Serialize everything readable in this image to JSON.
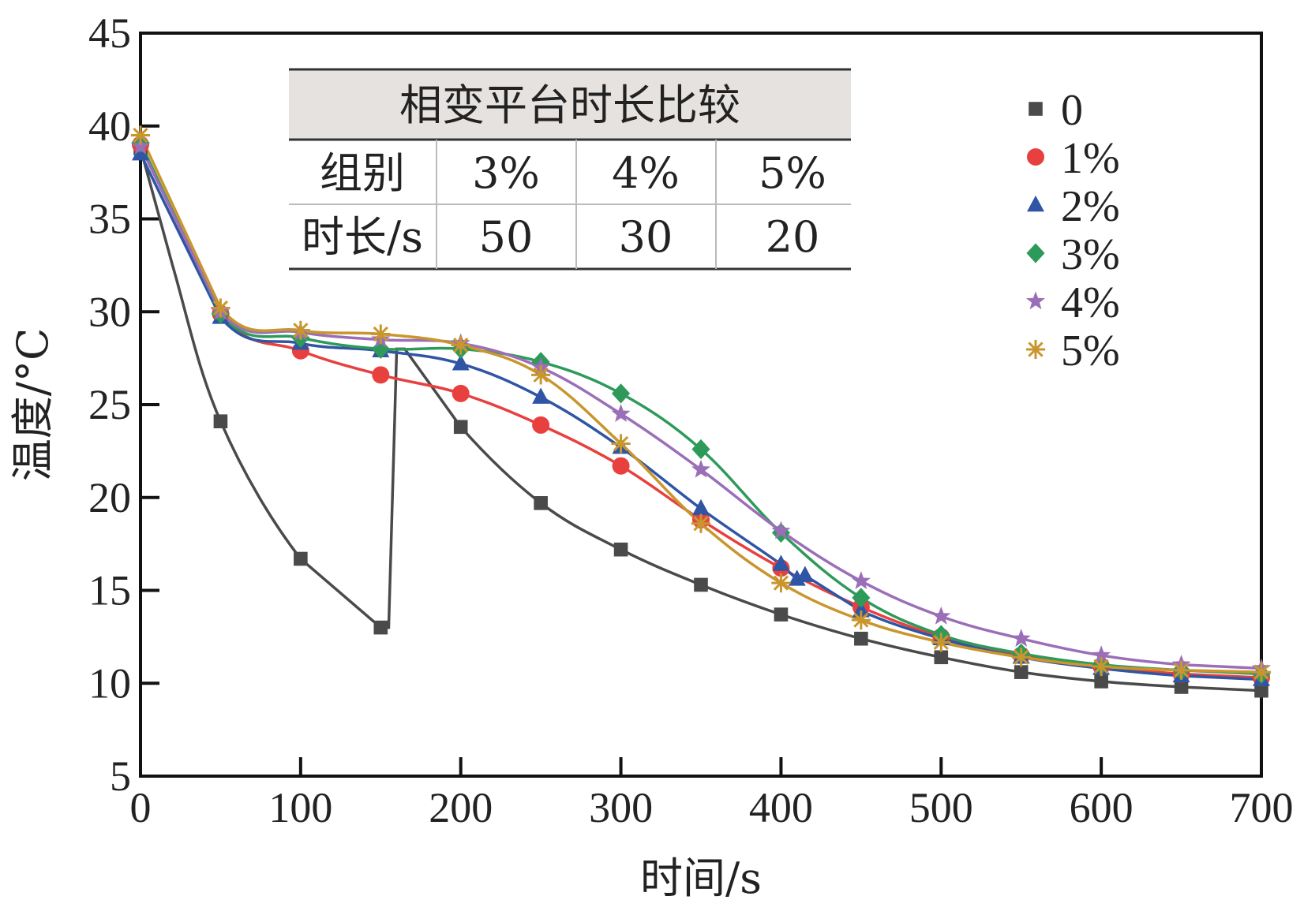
{
  "chart_data": {
    "type": "line",
    "xlabel": "时间/s",
    "ylabel": "温度/°C",
    "xlim": [
      0,
      700
    ],
    "ylim": [
      5,
      45
    ],
    "xticks": [
      0,
      100,
      200,
      300,
      400,
      500,
      600,
      700
    ],
    "yticks": [
      5,
      10,
      15,
      20,
      25,
      30,
      35,
      40,
      45
    ],
    "grid": false,
    "legend_position": "top-right",
    "series": [
      {
        "name": "0",
        "color": "#4a4a4a",
        "marker": "square",
        "x": [
          0,
          20,
          50,
          100,
          150,
          155,
          160,
          165,
          200,
          250,
          300,
          350,
          400,
          450,
          500,
          550,
          600,
          650,
          700
        ],
        "y": [
          38.8,
          32.5,
          24.1,
          16.7,
          13.0,
          13.0,
          28.0,
          28.0,
          23.8,
          19.7,
          17.2,
          15.3,
          13.7,
          12.4,
          11.4,
          10.6,
          10.1,
          9.8,
          9.6
        ],
        "marker_x": [
          0,
          50,
          100,
          150,
          200,
          250,
          300,
          350,
          400,
          450,
          500,
          550,
          600,
          650,
          700
        ],
        "marker_y": [
          38.8,
          24.1,
          16.7,
          13.0,
          23.8,
          19.7,
          17.2,
          15.3,
          13.7,
          12.4,
          11.4,
          10.6,
          10.1,
          9.8,
          9.6
        ]
      },
      {
        "name": "1%",
        "color": "#e8403e",
        "marker": "circle",
        "x": [
          0,
          50,
          100,
          150,
          200,
          250,
          300,
          350,
          400,
          450,
          500,
          550,
          600,
          650,
          700
        ],
        "y": [
          39.0,
          29.9,
          27.9,
          26.6,
          25.6,
          23.9,
          21.7,
          18.8,
          16.2,
          14.1,
          12.5,
          11.5,
          10.9,
          10.5,
          10.3
        ]
      },
      {
        "name": "2%",
        "color": "#2f55a4",
        "marker": "triangle",
        "x": [
          0,
          50,
          100,
          150,
          200,
          250,
          300,
          350,
          400,
          410,
          415,
          450,
          500,
          550,
          600,
          650,
          700
        ],
        "y": [
          38.5,
          29.7,
          28.3,
          27.9,
          27.2,
          25.4,
          22.7,
          19.4,
          16.4,
          15.6,
          15.8,
          13.9,
          12.4,
          11.4,
          10.8,
          10.4,
          10.2
        ]
      },
      {
        "name": "3%",
        "color": "#2e9a5a",
        "marker": "diamond",
        "x": [
          0,
          50,
          100,
          150,
          200,
          250,
          300,
          350,
          400,
          450,
          500,
          550,
          600,
          650,
          700
        ],
        "y": [
          39.1,
          29.9,
          28.6,
          28.0,
          28.0,
          27.3,
          25.6,
          22.6,
          18.1,
          14.6,
          12.6,
          11.6,
          11.0,
          10.7,
          10.5
        ]
      },
      {
        "name": "4%",
        "color": "#9b6fb8",
        "marker": "star",
        "x": [
          0,
          50,
          100,
          150,
          200,
          250,
          300,
          350,
          400,
          450,
          500,
          550,
          600,
          650,
          700
        ],
        "y": [
          38.9,
          30.0,
          28.9,
          28.5,
          28.3,
          27.0,
          24.5,
          21.5,
          18.2,
          15.5,
          13.6,
          12.4,
          11.5,
          11.0,
          10.8
        ]
      },
      {
        "name": "5%",
        "color": "#c9962e",
        "marker": "asterisk",
        "x": [
          0,
          50,
          100,
          150,
          200,
          250,
          300,
          350,
          400,
          450,
          500,
          550,
          600,
          650,
          700
        ],
        "y": [
          39.5,
          30.2,
          29.0,
          28.8,
          28.2,
          26.6,
          22.9,
          18.6,
          15.4,
          13.4,
          12.2,
          11.4,
          10.9,
          10.7,
          10.6
        ]
      }
    ],
    "inset_table": {
      "title": "相变平台时长比较",
      "header": [
        "组别",
        "3%",
        "4%",
        "5%"
      ],
      "rows": [
        [
          "时长/s",
          "50",
          "30",
          "20"
        ]
      ]
    }
  }
}
